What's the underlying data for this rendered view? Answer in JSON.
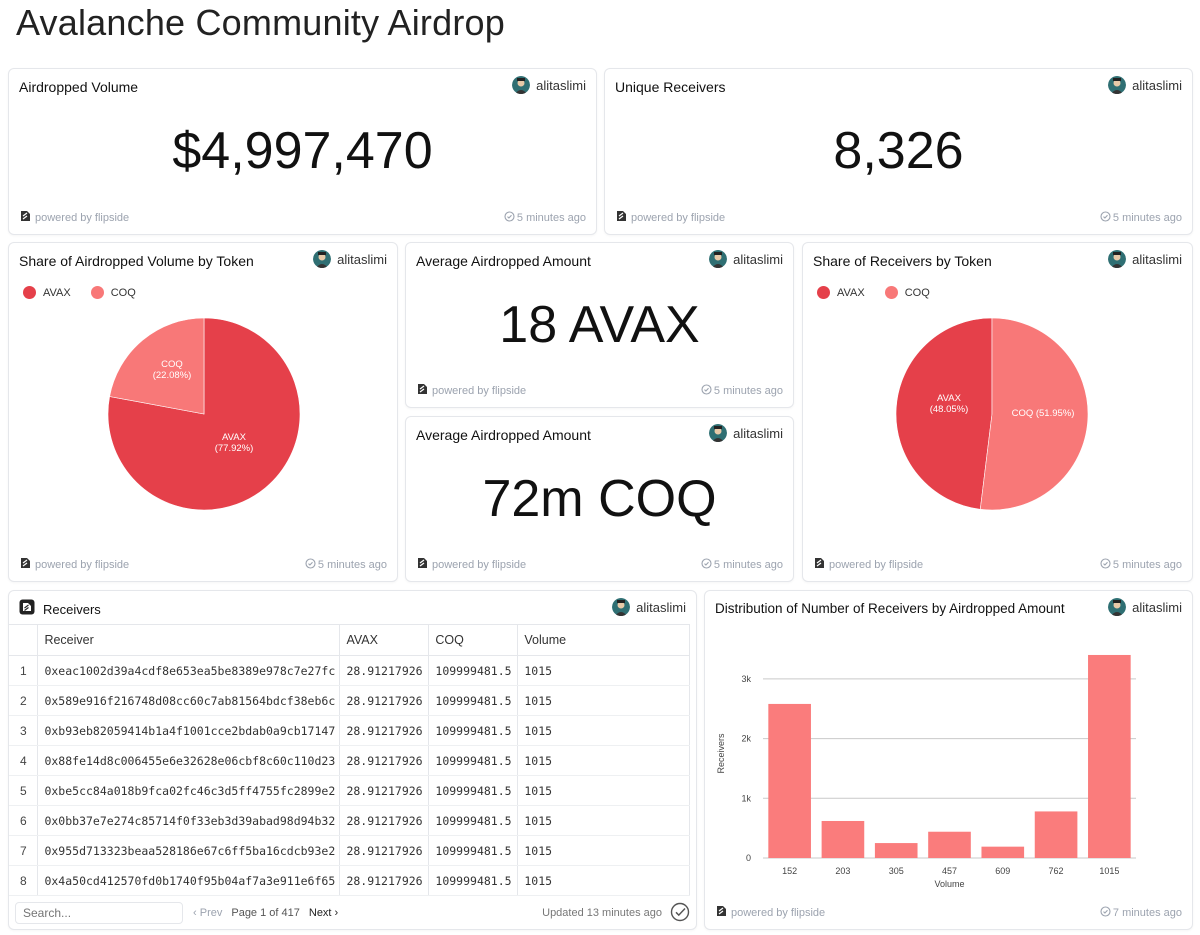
{
  "page": {
    "title": "Avalanche Community Airdrop"
  },
  "common": {
    "author": "alitaslimi",
    "powered": "powered by flipside"
  },
  "colors": {
    "avax": "#e5404a",
    "coq": "#f87878",
    "bar": "#fa7c7c"
  },
  "cards": {
    "volume": {
      "title": "Airdropped Volume",
      "value": "$4,997,470",
      "ago": "5 minutes ago"
    },
    "receivers": {
      "title": "Unique Receivers",
      "value": "8,326",
      "ago": "5 minutes ago"
    },
    "share_volume": {
      "title": "Share of Airdropped Volume by Token",
      "legend": [
        "AVAX",
        "COQ"
      ],
      "ago": "5 minutes ago",
      "chart_data": {
        "type": "pie",
        "title": "Share of Airdropped Volume by Token",
        "labels": [
          "AVAX",
          "COQ"
        ],
        "values": [
          77.92,
          22.08
        ],
        "slice_labels": [
          "AVAX",
          "COQ"
        ],
        "slice_pcts": [
          "(77.92%)",
          "(22.08%)"
        ]
      }
    },
    "avg_avax": {
      "title": "Average Airdropped Amount",
      "value": "18 AVAX",
      "ago": "5 minutes ago"
    },
    "avg_coq": {
      "title": "Average Airdropped Amount",
      "value": "72m COQ",
      "ago": "5 minutes ago"
    },
    "share_receivers": {
      "title": "Share of Receivers by Token",
      "legend": [
        "AVAX",
        "COQ"
      ],
      "ago": "5 minutes ago",
      "chart_data": {
        "type": "pie",
        "title": "Share of Receivers by Token",
        "labels": [
          "AVAX",
          "COQ"
        ],
        "values": [
          48.05,
          51.95
        ],
        "slice_labels": [
          "AVAX",
          "COQ (51.95%)"
        ],
        "slice_pcts": [
          "(48.05%)",
          ""
        ]
      }
    },
    "table": {
      "title": "Receivers",
      "columns": [
        "Receiver",
        "AVAX",
        "COQ",
        "Volume"
      ],
      "rows": [
        [
          "1",
          "0xeac1002d39a4cdf8e653ea5be8389e978c7e27fc",
          "28.91217926",
          "109999481.5",
          "1015"
        ],
        [
          "2",
          "0x589e916f216748d08cc60c7ab81564bdcf38eb6c",
          "28.91217926",
          "109999481.5",
          "1015"
        ],
        [
          "3",
          "0xb93eb82059414b1a4f1001cce2bdab0a9cb17147",
          "28.91217926",
          "109999481.5",
          "1015"
        ],
        [
          "4",
          "0x88fe14d8c006455e6e32628e06cbf8c60c110d23",
          "28.91217926",
          "109999481.5",
          "1015"
        ],
        [
          "5",
          "0xbe5cc84a018b9fca02fc46c3d5ff4755fc2899e2",
          "28.91217926",
          "109999481.5",
          "1015"
        ],
        [
          "6",
          "0x0bb37e7e274c85714f0f33eb3d39abad98d94b32",
          "28.91217926",
          "109999481.5",
          "1015"
        ],
        [
          "7",
          "0x955d713323beaa528186e67c6ff5ba16cdcb93e2",
          "28.91217926",
          "109999481.5",
          "1015"
        ],
        [
          "8",
          "0x4a50cd412570fd0b1740f95b04af7a3e911e6f65",
          "28.91217926",
          "109999481.5",
          "1015"
        ]
      ],
      "search_placeholder": "Search...",
      "prev": "Prev",
      "page_info": "Page 1 of 417",
      "next": "Next",
      "updated": "Updated 13 minutes ago"
    },
    "distribution": {
      "title": "Distribution of Number of Receivers by Airdropped Amount",
      "ago": "7 minutes ago",
      "chart_data": {
        "type": "bar",
        "title": "Distribution of Number of Receivers by Airdropped Amount",
        "categories": [
          "152",
          "203",
          "305",
          "457",
          "609",
          "762",
          "1015"
        ],
        "values": [
          2580,
          620,
          250,
          440,
          190,
          780,
          3400
        ],
        "xlabel": "Volume",
        "ylabel": "Receivers",
        "ylim": [
          0,
          3500
        ],
        "yticks": [
          0,
          1000,
          2000,
          3000
        ],
        "ytick_labels": [
          "0",
          "1k",
          "2k",
          "3k"
        ]
      }
    }
  }
}
